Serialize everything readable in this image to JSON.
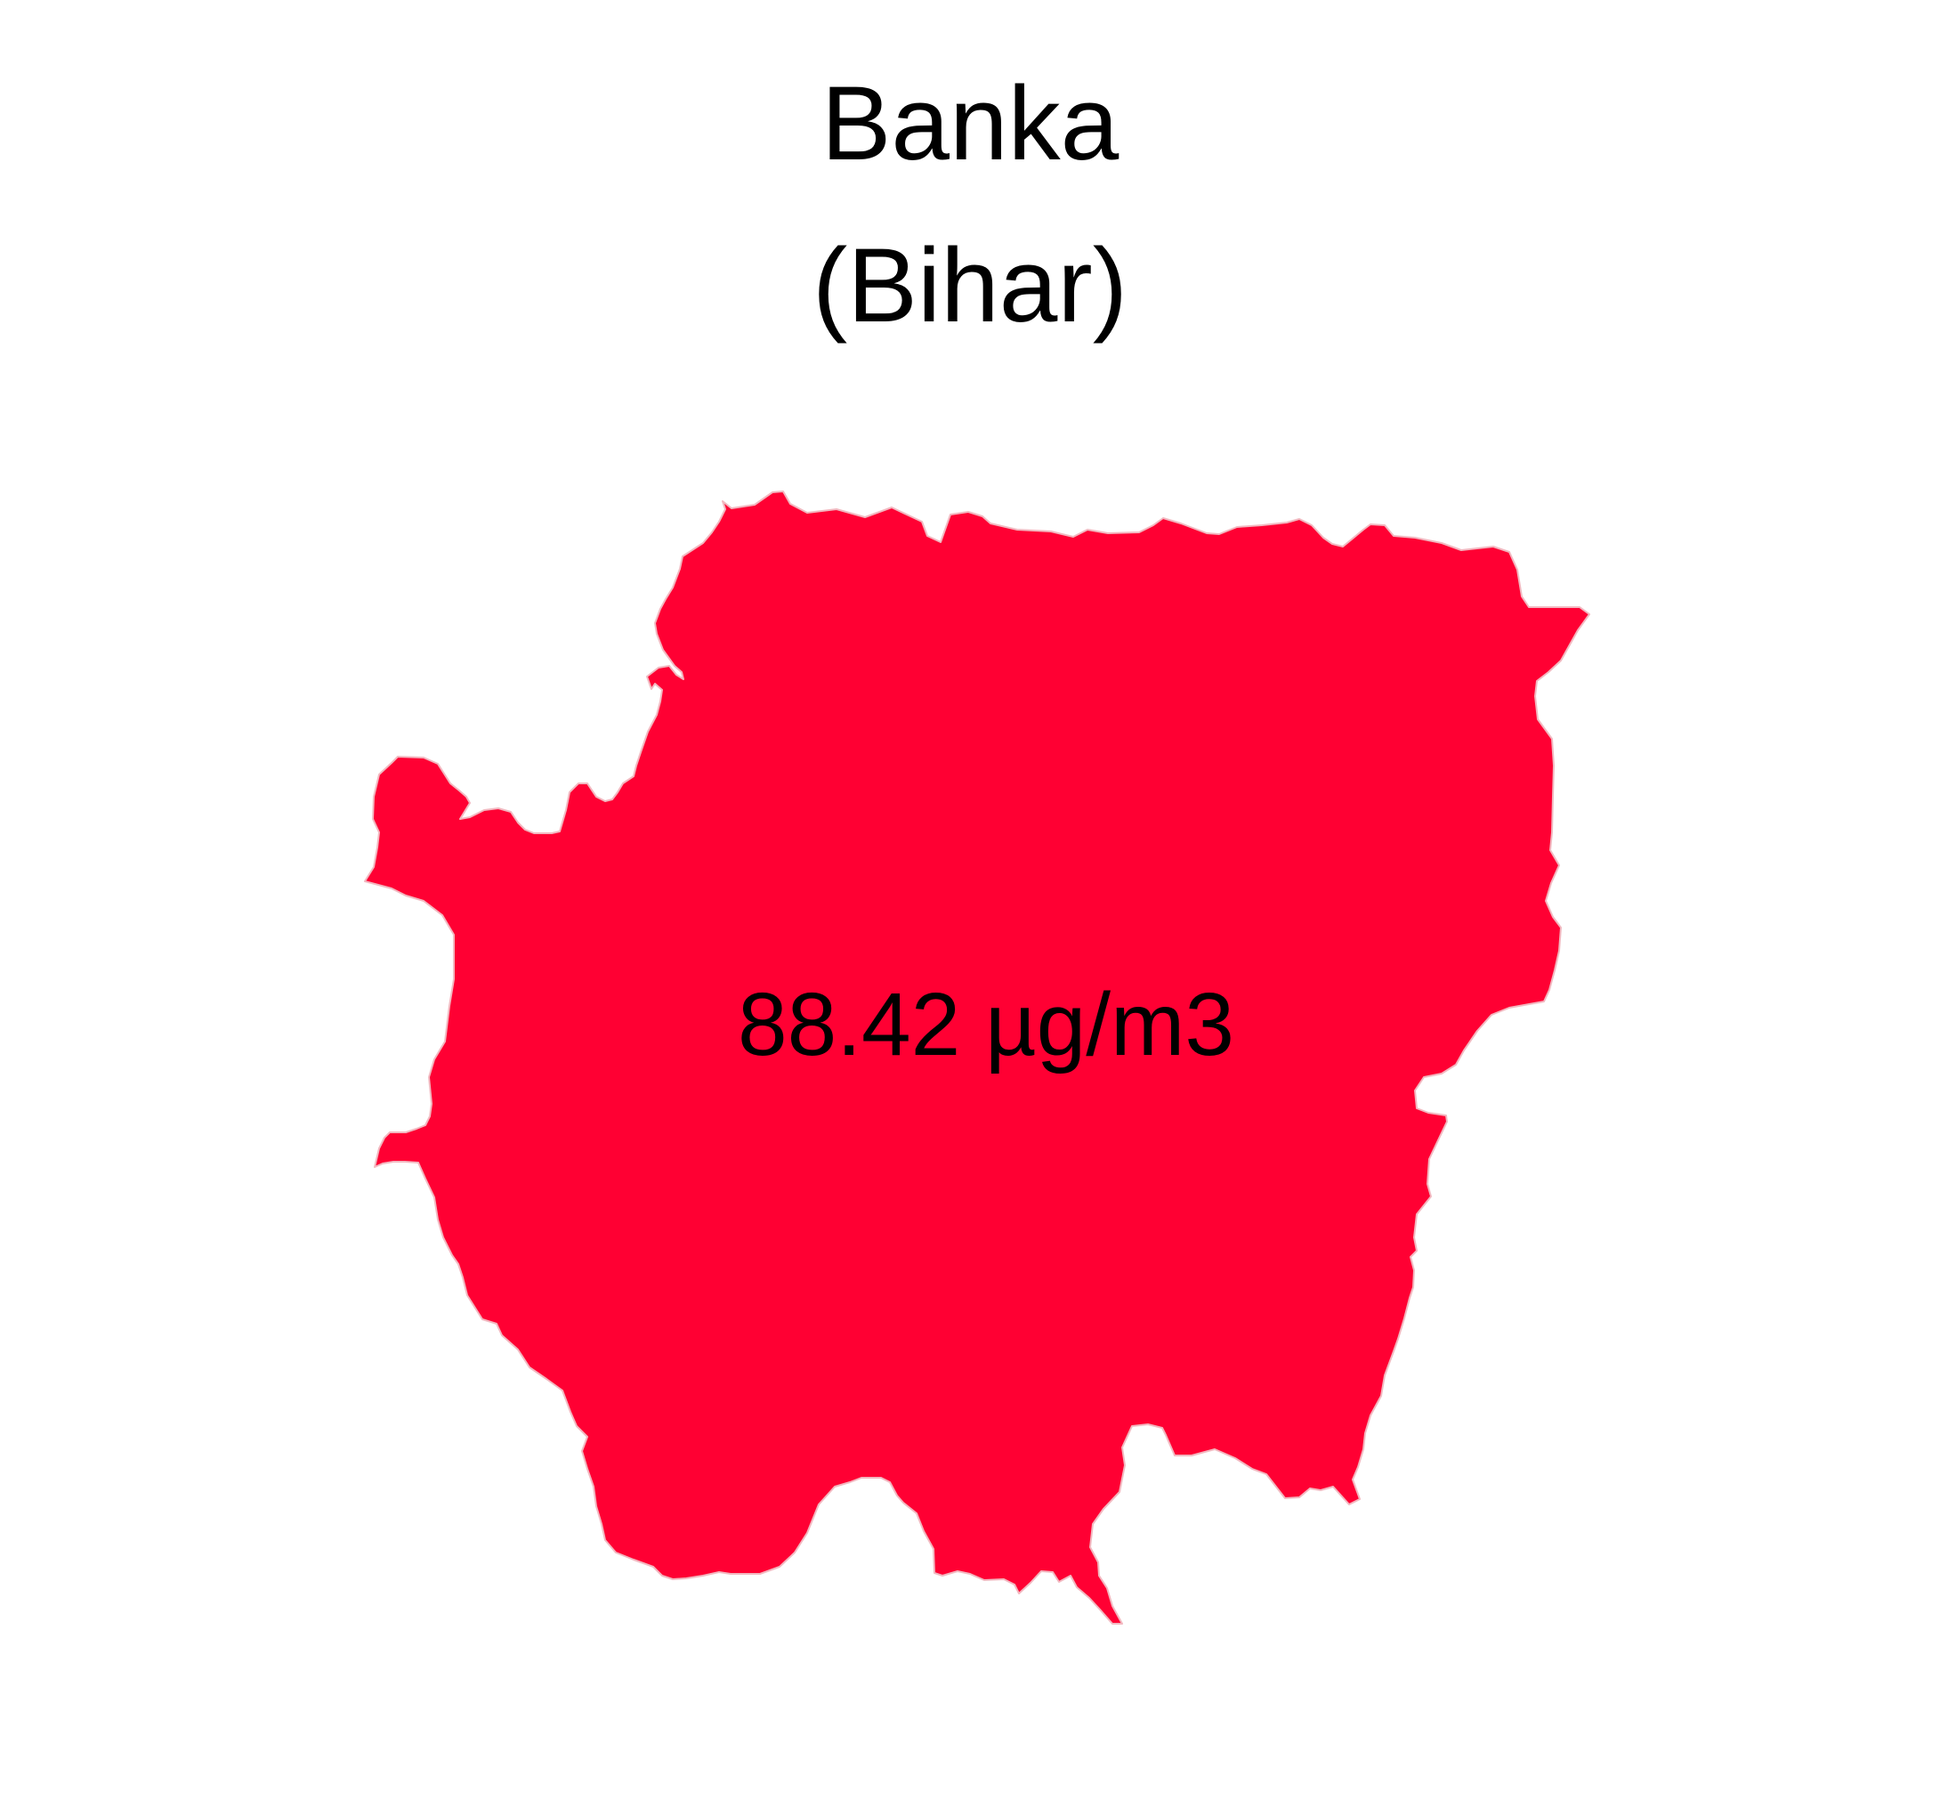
{
  "map": {
    "district": "Banka",
    "state": "(Bihar)",
    "value_label": "88.42 µg/m3",
    "fill_color": "#FF0033",
    "background_color": "#FFFFFF"
  }
}
